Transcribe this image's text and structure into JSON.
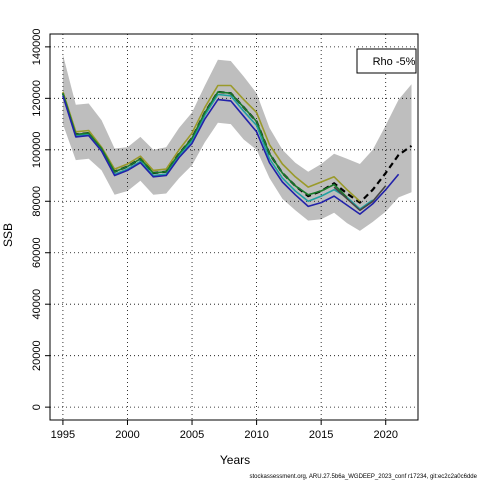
{
  "chart_data": {
    "type": "line",
    "xlabel": "Years",
    "ylabel": "SSB",
    "legend_text": "Rho -5%",
    "legend_position": "top-right",
    "footer": "stockassessment.org, ARU.27.5b6a_WGDEEP_2023_conf r17234, git:ec2c2a0c6dde",
    "xlim": [
      1994,
      2022.5
    ],
    "ylim": [
      -5000,
      145000
    ],
    "grid": true,
    "x_ticks": [
      1995,
      2000,
      2005,
      2010,
      2015,
      2020
    ],
    "y_ticks": [
      0,
      20000,
      40000,
      60000,
      80000,
      100000,
      120000,
      140000
    ],
    "confidence_band": {
      "x": [
        1995,
        1996,
        1997,
        1998,
        1999,
        2000,
        2001,
        2002,
        2003,
        2004,
        2005,
        2006,
        2007,
        2008,
        2009,
        2010,
        2011,
        2012,
        2013,
        2014,
        2015,
        2016,
        2017,
        2018,
        2019,
        2020,
        2021,
        2022
      ],
      "upper": [
        137000,
        117500,
        118000,
        111500,
        100500,
        101000,
        105000,
        100000,
        101000,
        108500,
        114500,
        125000,
        135000,
        134500,
        128500,
        122000,
        108500,
        100000,
        95000,
        91500,
        94500,
        98500,
        96500,
        94500,
        100000,
        109500,
        119500,
        125500
      ],
      "lower": [
        110000,
        96000,
        96500,
        92000,
        82500,
        84000,
        88000,
        82500,
        83000,
        89000,
        94000,
        103000,
        110500,
        110000,
        104000,
        100000,
        89000,
        81000,
        76500,
        72500,
        73000,
        75500,
        71500,
        68500,
        72000,
        76000,
        81500,
        83500
      ]
    },
    "series": [
      {
        "color": "#000000",
        "dashed": true,
        "x": [
          1995,
          1996,
          1997,
          1998,
          1999,
          2000,
          2001,
          2002,
          2003,
          2004,
          2005,
          2006,
          2007,
          2008,
          2009,
          2010,
          2011,
          2012,
          2013,
          2014,
          2015,
          2016,
          2017,
          2018,
          2019,
          2020,
          2021,
          2022
        ],
        "values": [
          122000,
          106000,
          106500,
          100500,
          91500,
          93500,
          96500,
          91000,
          91500,
          98500,
          104500,
          114500,
          122500,
          122000,
          116500,
          111000,
          98500,
          91000,
          86000,
          82000,
          84000,
          87000,
          83000,
          79500,
          84500,
          91000,
          98000,
          101500
        ]
      },
      {
        "color": "#9a9a2a",
        "x": [
          1995,
          1996,
          1997,
          1998,
          1999,
          2000,
          2001,
          2002,
          2003,
          2004,
          2005,
          2006,
          2007,
          2008,
          2009,
          2010,
          2011,
          2012,
          2013,
          2014,
          2015,
          2016,
          2017,
          2018
        ],
        "values": [
          122500,
          107000,
          107500,
          101000,
          92500,
          94500,
          97500,
          92000,
          92500,
          100000,
          106500,
          116500,
          125000,
          125000,
          119500,
          114500,
          102000,
          94500,
          89500,
          85500,
          87500,
          89500,
          84500,
          80000
        ]
      },
      {
        "color": "#21a0a0",
        "x": [
          1995,
          1996,
          1997,
          1998,
          1999,
          2000,
          2001,
          2002,
          2003,
          2004,
          2005,
          2006,
          2007,
          2008,
          2009,
          2010,
          2011,
          2012,
          2013,
          2014,
          2015,
          2016,
          2017,
          2018,
          2019
        ],
        "values": [
          121500,
          105500,
          106000,
          100000,
          90500,
          92500,
          95500,
          90000,
          90500,
          97500,
          103500,
          113500,
          121500,
          121000,
          115000,
          109500,
          96500,
          89000,
          84000,
          80000,
          82000,
          84500,
          81500,
          77000,
          80500
        ]
      },
      {
        "color": "#1a7a2a",
        "x": [
          1995,
          1996,
          1997,
          1998,
          1999,
          2000,
          2001,
          2002,
          2003,
          2004,
          2005,
          2006,
          2007,
          2008,
          2009,
          2010,
          2011,
          2012,
          2013,
          2014,
          2015,
          2016,
          2017
        ],
        "values": [
          122000,
          106000,
          106500,
          100500,
          91500,
          93500,
          96500,
          91000,
          91500,
          98500,
          104500,
          114500,
          122500,
          122000,
          116500,
          111000,
          98500,
          91000,
          86000,
          82500,
          84000,
          86500,
          81500
        ]
      },
      {
        "color": "#2222aa",
        "x": [
          1995,
          1996,
          1997,
          1998,
          1999,
          2000,
          2001,
          2002,
          2003,
          2004,
          2005,
          2006,
          2007,
          2008,
          2009,
          2010,
          2011,
          2012,
          2013,
          2014,
          2015,
          2016,
          2017,
          2018,
          2019,
          2020,
          2021
        ],
        "values": [
          121000,
          105000,
          105500,
          99500,
          90000,
          92000,
          95000,
          89500,
          90000,
          97000,
          102500,
          112000,
          119500,
          119000,
          113000,
          107000,
          95000,
          87500,
          82500,
          78000,
          79500,
          82000,
          78500,
          75000,
          79000,
          84500,
          90500
        ]
      },
      {
        "color": "#444444",
        "x": [
          2016,
          2017,
          2018,
          2019,
          2020
        ],
        "values": [
          85500,
          81000,
          76500,
          80000,
          86000
        ]
      }
    ]
  }
}
